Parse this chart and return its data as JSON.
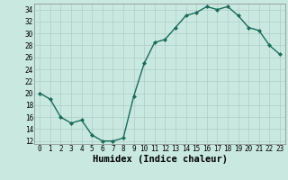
{
  "xlabel": "Humidex (Indice chaleur)",
  "x": [
    0,
    1,
    2,
    3,
    4,
    5,
    6,
    7,
    8,
    9,
    10,
    11,
    12,
    13,
    14,
    15,
    16,
    17,
    18,
    19,
    20,
    21,
    22,
    23
  ],
  "y": [
    20,
    19,
    16,
    15,
    15.5,
    13,
    12,
    12,
    12.5,
    19.5,
    25,
    28.5,
    29,
    31,
    33,
    33.5,
    34.5,
    34,
    34.5,
    33,
    31,
    30.5,
    28,
    26.5
  ],
  "line_color": "#1a6b5a",
  "marker": "D",
  "marker_size": 2.0,
  "bg_color": "#c8e8e0",
  "grid_color": "#b0cec8",
  "xlim": [
    -0.5,
    23.5
  ],
  "ylim": [
    11.5,
    35.0
  ],
  "yticks": [
    12,
    14,
    16,
    18,
    20,
    22,
    24,
    26,
    28,
    30,
    32,
    34
  ],
  "xticks": [
    0,
    1,
    2,
    3,
    4,
    5,
    6,
    7,
    8,
    9,
    10,
    11,
    12,
    13,
    14,
    15,
    16,
    17,
    18,
    19,
    20,
    21,
    22,
    23
  ],
  "tick_label_fontsize": 5.5,
  "xlabel_fontsize": 7.5,
  "line_width": 1.0
}
